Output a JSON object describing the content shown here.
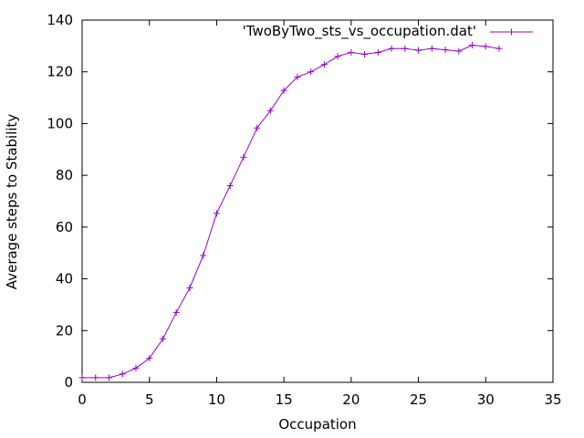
{
  "chart_data": {
    "type": "line",
    "xlabel": "Occupation",
    "ylabel": "Average steps to Stability",
    "xlim": [
      0,
      35
    ],
    "ylim": [
      0,
      140
    ],
    "xticks": [
      0,
      5,
      10,
      15,
      20,
      25,
      30,
      35
    ],
    "yticks": [
      0,
      20,
      40,
      60,
      80,
      100,
      120,
      140
    ],
    "grid": false,
    "legend_position": "top-right",
    "series": [
      {
        "name": "'TwoByTwo_sts_vs_occupation.dat'",
        "color": "#9400d3",
        "marker": "plus",
        "x": [
          0,
          1,
          2,
          3,
          4,
          5,
          6,
          7,
          8,
          9,
          10,
          11,
          12,
          13,
          14,
          15,
          16,
          17,
          18,
          19,
          20,
          21,
          22,
          23,
          24,
          25,
          26,
          27,
          28,
          29,
          30,
          31
        ],
        "y": [
          1.8,
          1.8,
          1.8,
          3.2,
          5.5,
          9.3,
          16.8,
          27.0,
          36.5,
          49.0,
          65.3,
          76.0,
          87.0,
          98.3,
          105.0,
          112.8,
          118.0,
          120.0,
          122.8,
          126.0,
          127.5,
          126.8,
          127.5,
          129.0,
          129.0,
          128.3,
          129.0,
          128.5,
          128.0,
          130.3,
          129.8,
          129.0
        ]
      }
    ]
  }
}
